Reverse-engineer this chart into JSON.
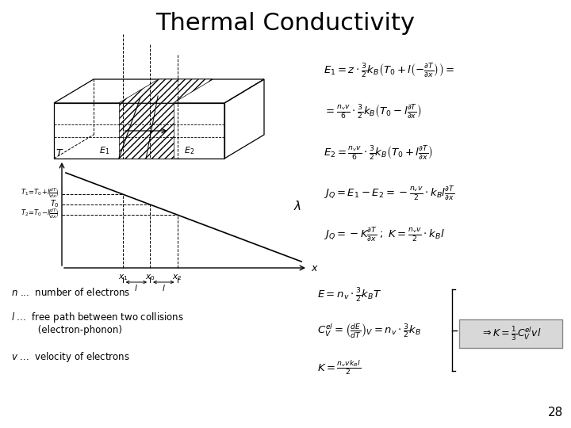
{
  "title": "Thermal Conductivity",
  "slide_number": "28",
  "bg_color": "#ffffff",
  "title_fontsize": 22,
  "eq_fontsize": 9.5,
  "right_equations_top": [
    "$E_1 = z \\cdot \\frac{3}{2} k_B \\left( T_0 + l\\left(-\\frac{\\partial T}{\\partial x}\\right)\\right) =$",
    "$= \\frac{n_v v}{6} \\cdot \\frac{3}{2} k_B \\left( T_0 - l\\frac{\\partial T}{\\partial x} \\right)$",
    "$E_2 = \\frac{n_v v}{6} \\cdot \\frac{3}{2} k_B \\left( T_0 + l\\frac{\\partial T}{\\partial x} \\right)$",
    "$J_Q = E_1 - E_2 = -\\frac{n_v v}{2} \\cdot k_B l \\frac{\\partial T}{\\partial x}$",
    "$J_Q = -K\\frac{\\partial T}{\\partial x}\\;; \\; K = \\frac{n_v v}{2} \\cdot k_B l$"
  ],
  "right_equations_bottom": [
    "$E = n_v \\cdot \\frac{3}{2} k_B T$",
    "$C_V^{el} = \\left(\\frac{dE}{dT}\\right)_V = n_v \\cdot \\frac{3}{2} k_B$",
    "$K = \\frac{n_v v k_B l}{2}$"
  ],
  "result_eq": "$\\Rightarrow K = \\frac{1}{3} C_V^{el} v l$",
  "left_text_lines": [
    "$n$ ...  number of electrons",
    "$l$ ...  free path between two collisions",
    "         (electron-phonon)",
    "$v$ ...  velocity of electrons"
  ]
}
